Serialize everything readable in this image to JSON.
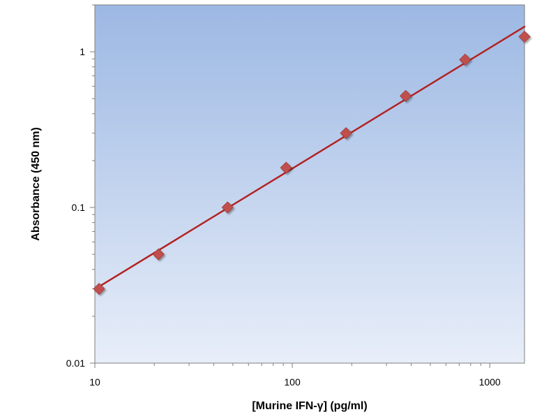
{
  "chart_data": {
    "type": "scatter",
    "xlabel": "[Murine IFN-γ] (pg/ml)",
    "ylabel": "Absorbance (450 nm)",
    "x_scale": "log",
    "y_scale": "log",
    "xlim": [
      10,
      1500
    ],
    "ylim": [
      0.01,
      2
    ],
    "x_ticks": [
      {
        "value": 10,
        "label": "10"
      },
      {
        "value": 100,
        "label": "100"
      },
      {
        "value": 1000,
        "label": "1000"
      }
    ],
    "y_ticks": [
      {
        "value": 0.01,
        "label": "0.01"
      },
      {
        "value": 0.1,
        "label": "0.1"
      },
      {
        "value": 1,
        "label": "1"
      }
    ],
    "grid": false,
    "legend": "none",
    "series": [
      {
        "marker": "diamond",
        "color": "#c0504d",
        "points": [
          {
            "x": 10.5,
            "y": 0.03
          },
          {
            "x": 21,
            "y": 0.05
          },
          {
            "x": 47,
            "y": 0.1
          },
          {
            "x": 93,
            "y": 0.18
          },
          {
            "x": 187,
            "y": 0.3
          },
          {
            "x": 375,
            "y": 0.52
          },
          {
            "x": 750,
            "y": 0.89
          },
          {
            "x": 1500,
            "y": 1.25
          }
        ]
      }
    ],
    "fit_line": {
      "type": "power",
      "color": "#b22222",
      "points": [
        {
          "x": 10.5,
          "y": 0.031
        },
        {
          "x": 1500,
          "y": 1.45
        }
      ]
    },
    "background_gradient": [
      "#9cb8e3",
      "#e8eef9"
    ]
  }
}
